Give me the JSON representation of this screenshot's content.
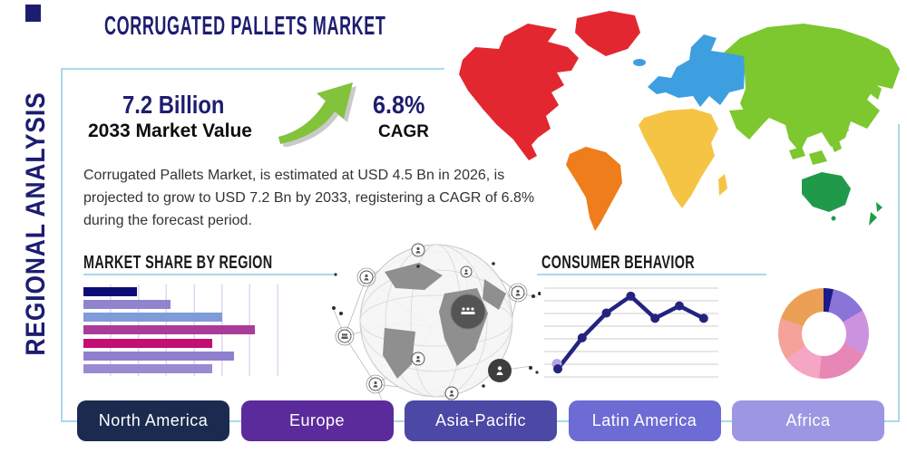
{
  "titles": {
    "main": "CORRUGATED PALLETS MARKET",
    "sidebar": "REGIONAL ANALYSIS"
  },
  "stats": {
    "market_value": "7.2 Billion",
    "market_value_label": "2033 Market Value",
    "cagr_value": "6.8%",
    "cagr_label": "CAGR"
  },
  "description": "Corrugated Pallets Market, is estimated at USD 4.5 Bn in 2026, is projected to grow to USD 7.2 Bn by 2033, registering a CAGR of 6.8% during the forecast period.",
  "sections": {
    "market_share_title": "MARKET SHARE BY REGION",
    "consumer_behavior_title": "CONSUMER BEHAVIOR"
  },
  "region_buttons": [
    {
      "label": "North America",
      "color": "#1b2b50"
    },
    {
      "label": "Europe",
      "color": "#5b2a9b"
    },
    {
      "label": "Asia-Pacific",
      "color": "#4c48a5"
    },
    {
      "label": "Latin America",
      "color": "#6d6bd4"
    },
    {
      "label": "Africa",
      "color": "#9d96e2"
    }
  ],
  "colors": {
    "accent_navy": "#1d1d70",
    "border_blue": "#a9d9ea",
    "arrow_green": "#82c33b",
    "arrow_green_dark": "#5f9e27",
    "map": {
      "north_america": "#e32730",
      "greenland": "#e32730",
      "south_america": "#ef7d1b",
      "europe": "#3d9fe0",
      "iceland": "#3d9fe0",
      "africa": "#f6c445",
      "madagascar": "#f6c445",
      "asia": "#7dc72f",
      "arabia": "#7dc72f",
      "japan": "#7dc72f",
      "islands": "#7dc72f",
      "australia": "#209a4a",
      "new_zealand": "#209a4a"
    }
  },
  "chart_data": [
    {
      "type": "bar",
      "title": "MARKET SHARE BY REGION",
      "orientation": "horizontal",
      "categories": [
        "",
        "",
        "",
        "",
        "",
        "",
        ""
      ],
      "values": [
        31,
        51,
        81,
        100,
        75,
        88,
        75
      ],
      "value_scale": "relative 0-100 (bars unlabeled in source)",
      "bar_colors": [
        "#0c0c77",
        "#9184ce",
        "#809bd9",
        "#a93c99",
        "#c40e74",
        "#8e80cf",
        "#9a8ad2"
      ],
      "grid": "vertical",
      "xlabel": "",
      "ylabel": ""
    },
    {
      "type": "line",
      "title": "CONSUMER BEHAVIOR",
      "x": [
        1,
        2,
        3,
        4,
        5,
        6,
        7
      ],
      "y": [
        9,
        44,
        72,
        91,
        66,
        80,
        66
      ],
      "ylim": [
        0,
        100
      ],
      "grid": "horizontal",
      "line_color": "#24247f",
      "marker_color": "#24247f",
      "first_marker_color": "#b3a5e5",
      "xlabel": "",
      "ylabel": ""
    },
    {
      "type": "pie",
      "subtype": "donut",
      "title": "",
      "segments": [
        {
          "label": "segment-1",
          "color": "#1a1a8a",
          "percent": 3.5
        },
        {
          "label": "segment-2",
          "color": "#8a74d8",
          "percent": 13
        },
        {
          "label": "segment-3",
          "color": "#cd92de",
          "percent": 16
        },
        {
          "label": "segment-4",
          "color": "#e687b5",
          "percent": 19
        },
        {
          "label": "segment-5",
          "color": "#f5a6c2",
          "percent": 14
        },
        {
          "label": "segment-6",
          "color": "#f4a29a",
          "percent": 15
        },
        {
          "label": "segment-7",
          "color": "#eba055",
          "percent": 19.5
        }
      ]
    }
  ]
}
